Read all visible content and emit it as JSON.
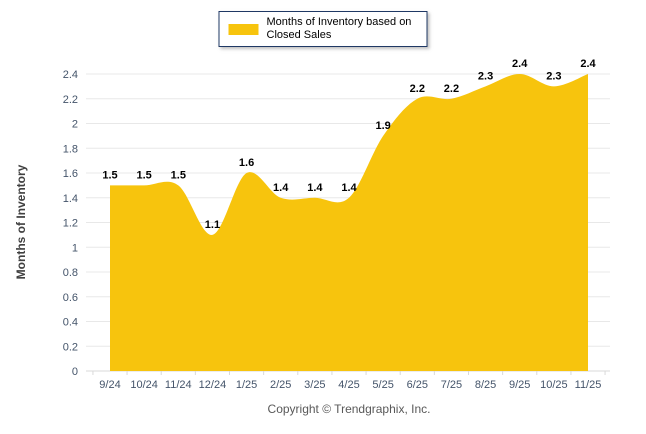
{
  "chart_data": {
    "type": "area",
    "title": "",
    "legend_label": "Months of Inventory based on Closed Sales",
    "legend_position": "top-center",
    "categories": [
      "9/24",
      "10/24",
      "11/24",
      "12/24",
      "1/25",
      "2/25",
      "3/25",
      "4/25",
      "5/25",
      "6/25",
      "7/25",
      "8/25",
      "9/25",
      "10/25",
      "11/25"
    ],
    "series": [
      {
        "name": "Months of Inventory based on Closed Sales",
        "values": [
          1.5,
          1.5,
          1.5,
          1.1,
          1.6,
          1.4,
          1.4,
          1.4,
          1.9,
          2.2,
          2.2,
          2.3,
          2.4,
          2.3,
          2.4
        ]
      }
    ],
    "xlabel": "",
    "ylabel": "Months of Inventory",
    "ylim": [
      0,
      2.4
    ],
    "ytick_step": 0.2,
    "grid": "horizontal",
    "smooth": true,
    "data_labels": true,
    "colors": {
      "area": "#F7C40D",
      "legend_border": "#1F3864",
      "grid": "#E8E8E8",
      "axis": "#D9D9D9",
      "tick_label": "#44546A",
      "data_label": "#000000",
      "axis_title": "#404040",
      "copyright_text": "#595959"
    }
  },
  "footer": {
    "copyright": "Copyright © Trendgraphix, Inc."
  }
}
